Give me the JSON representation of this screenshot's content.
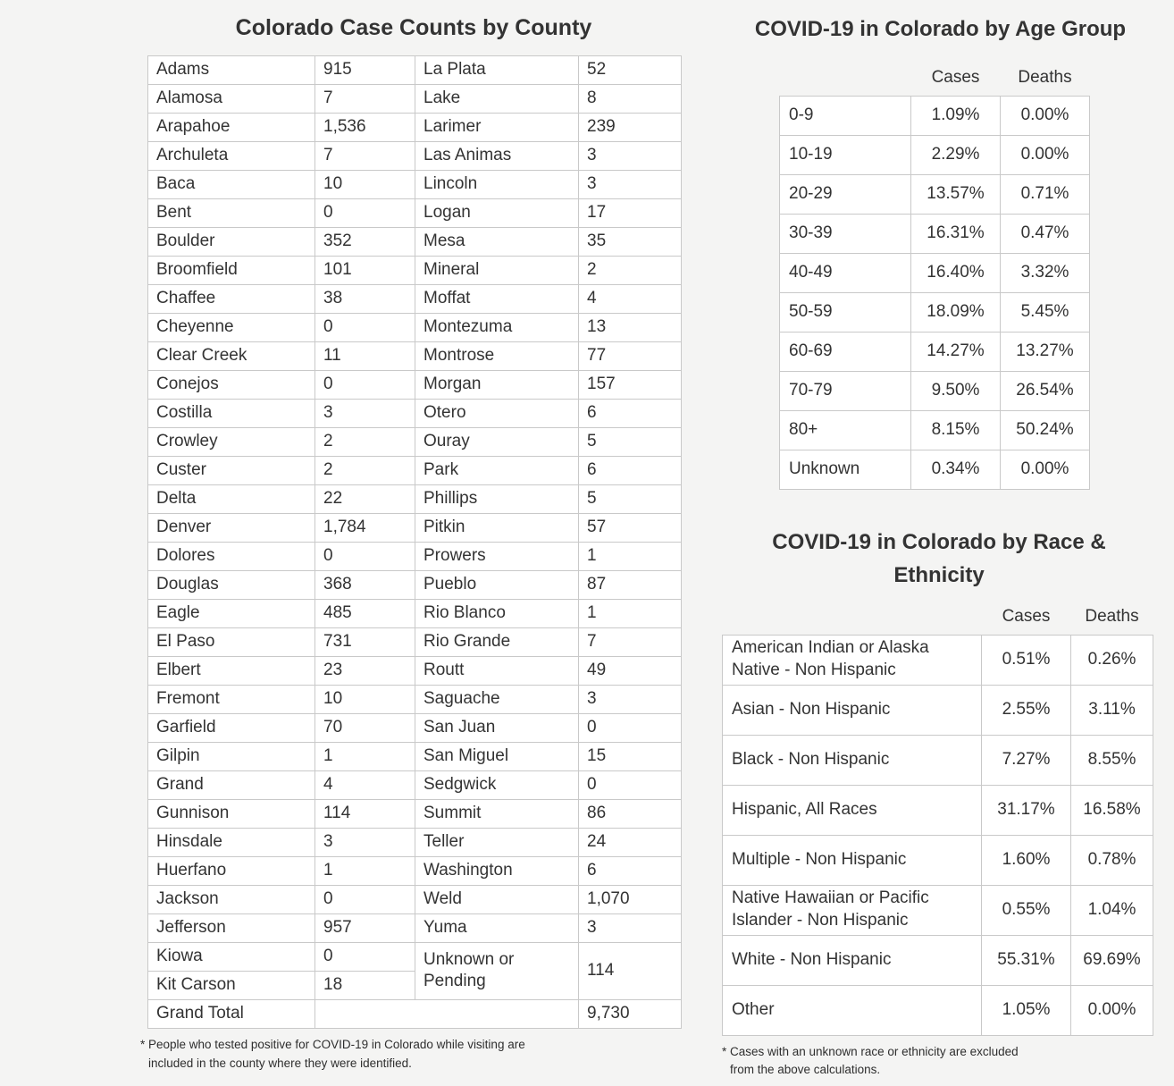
{
  "ui": {
    "colors": {
      "background": "#f4f4f3",
      "cell_background": "#ffffff",
      "border": "#c9c9c9",
      "text": "#333333"
    }
  },
  "chart_data": [
    {
      "type": "table",
      "title": "Colorado Case Counts by County",
      "left_rows": [
        [
          "Adams",
          "915"
        ],
        [
          "Alamosa",
          "7"
        ],
        [
          "Arapahoe",
          "1,536"
        ],
        [
          "Archuleta",
          "7"
        ],
        [
          "Baca",
          "10"
        ],
        [
          "Bent",
          "0"
        ],
        [
          "Boulder",
          "352"
        ],
        [
          "Broomfield",
          "101"
        ],
        [
          "Chaffee",
          "38"
        ],
        [
          "Cheyenne",
          "0"
        ],
        [
          "Clear Creek",
          "11"
        ],
        [
          "Conejos",
          "0"
        ],
        [
          "Costilla",
          "3"
        ],
        [
          "Crowley",
          "2"
        ],
        [
          "Custer",
          "2"
        ],
        [
          "Delta",
          "22"
        ],
        [
          "Denver",
          "1,784"
        ],
        [
          "Dolores",
          "0"
        ],
        [
          "Douglas",
          "368"
        ],
        [
          "Eagle",
          "485"
        ],
        [
          "El Paso",
          "731"
        ],
        [
          "Elbert",
          "23"
        ],
        [
          "Fremont",
          "10"
        ],
        [
          "Garfield",
          "70"
        ],
        [
          "Gilpin",
          "1"
        ],
        [
          "Grand",
          "4"
        ],
        [
          "Gunnison",
          "114"
        ],
        [
          "Hinsdale",
          "3"
        ],
        [
          "Huerfano",
          "1"
        ],
        [
          "Jackson",
          "0"
        ],
        [
          "Jefferson",
          "957"
        ],
        [
          "Kiowa",
          "0"
        ],
        [
          "Kit Carson",
          "18"
        ]
      ],
      "right_rows": [
        [
          "La Plata",
          "52"
        ],
        [
          "Lake",
          "8"
        ],
        [
          "Larimer",
          "239"
        ],
        [
          "Las Animas",
          "3"
        ],
        [
          "Lincoln",
          "3"
        ],
        [
          "Logan",
          "17"
        ],
        [
          "Mesa",
          "35"
        ],
        [
          "Mineral",
          "2"
        ],
        [
          "Moffat",
          "4"
        ],
        [
          "Montezuma",
          "13"
        ],
        [
          "Montrose",
          "77"
        ],
        [
          "Morgan",
          "157"
        ],
        [
          "Otero",
          "6"
        ],
        [
          "Ouray",
          "5"
        ],
        [
          "Park",
          "6"
        ],
        [
          "Phillips",
          "5"
        ],
        [
          "Pitkin",
          "57"
        ],
        [
          "Prowers",
          "1"
        ],
        [
          "Pueblo",
          "87"
        ],
        [
          "Rio Blanco",
          "1"
        ],
        [
          "Rio Grande",
          "7"
        ],
        [
          "Routt",
          "49"
        ],
        [
          "Saguache",
          "3"
        ],
        [
          "San Juan",
          "0"
        ],
        [
          "San Miguel",
          "15"
        ],
        [
          "Sedgwick",
          "0"
        ],
        [
          "Summit",
          "86"
        ],
        [
          "Teller",
          "24"
        ],
        [
          "Washington",
          "6"
        ],
        [
          "Weld",
          "1,070"
        ],
        [
          "Yuma",
          "3"
        ]
      ],
      "unknown_row": [
        "Unknown or Pending",
        "114"
      ],
      "grand_total": [
        "Grand Total",
        "9,730"
      ],
      "footnote": [
        "* People who tested positive for COVID-19 in Colorado while visiting are",
        "included in the county where they were identified."
      ]
    },
    {
      "type": "table",
      "title": "COVID-19 in Colorado by Age Group",
      "col_headers": [
        "Cases",
        "Deaths"
      ],
      "rows": [
        [
          "0-9",
          "1.09%",
          "0.00%"
        ],
        [
          "10-19",
          "2.29%",
          "0.00%"
        ],
        [
          "20-29",
          "13.57%",
          "0.71%"
        ],
        [
          "30-39",
          "16.31%",
          "0.47%"
        ],
        [
          "40-49",
          "16.40%",
          "3.32%"
        ],
        [
          "50-59",
          "18.09%",
          "5.45%"
        ],
        [
          "60-69",
          "14.27%",
          "13.27%"
        ],
        [
          "70-79",
          "9.50%",
          "26.54%"
        ],
        [
          "80+",
          "8.15%",
          "50.24%"
        ],
        [
          "Unknown",
          "0.34%",
          "0.00%"
        ]
      ]
    },
    {
      "type": "table",
      "title": "COVID-19 in Colorado by Race & Ethnicity",
      "col_headers": [
        "Cases",
        "Deaths"
      ],
      "rows": [
        [
          "American Indian or Alaska Native - Non Hispanic",
          "0.51%",
          "0.26%"
        ],
        [
          "Asian - Non Hispanic",
          "2.55%",
          "3.11%"
        ],
        [
          "Black - Non Hispanic",
          "7.27%",
          "8.55%"
        ],
        [
          "Hispanic, All Races",
          "31.17%",
          "16.58%"
        ],
        [
          "Multiple - Non Hispanic",
          "1.60%",
          "0.78%"
        ],
        [
          "Native Hawaiian or Pacific Islander - Non Hispanic",
          "0.55%",
          "1.04%"
        ],
        [
          "White - Non Hispanic",
          "55.31%",
          "69.69%"
        ],
        [
          "Other",
          "1.05%",
          "0.00%"
        ]
      ],
      "footnote": [
        "* Cases with an unknown race or ethnicity are excluded",
        "from the above calculations."
      ]
    }
  ]
}
